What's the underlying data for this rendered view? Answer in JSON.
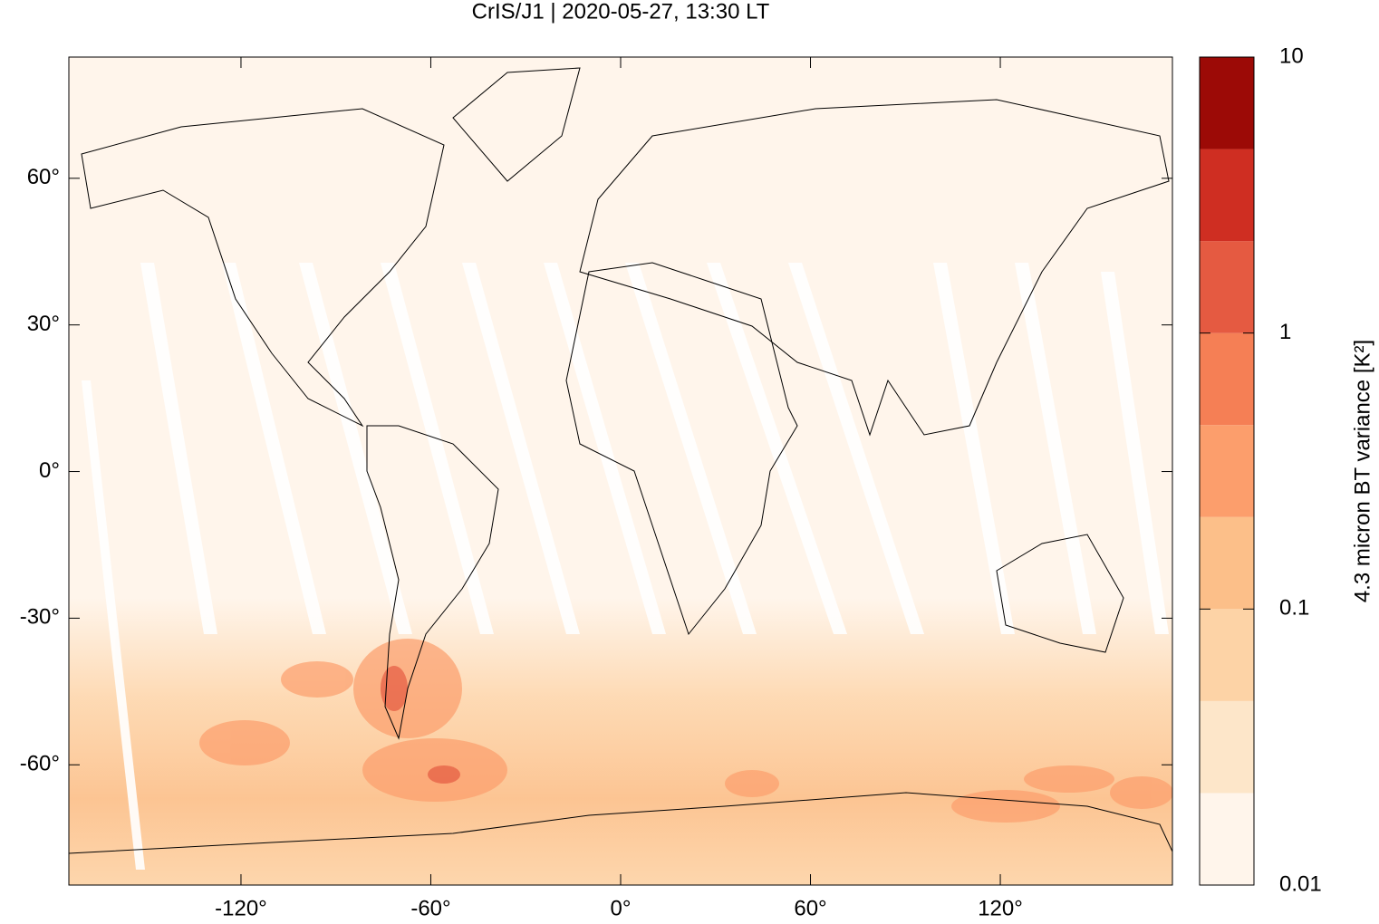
{
  "chart_data": {
    "type": "heatmap",
    "title": "CrIS/J1 | 2020-05-27, 13:30 LT",
    "xlim": [
      -174.4,
      174.4
    ],
    "ylim": [
      -84.6,
      84.8
    ],
    "xticks": [
      {
        "value": -120,
        "label": "-120°"
      },
      {
        "value": -60,
        "label": "-60°"
      },
      {
        "value": 0,
        "label": "0°"
      },
      {
        "value": 60,
        "label": "60°"
      },
      {
        "value": 120,
        "label": "120°"
      }
    ],
    "yticks": [
      {
        "value": 60,
        "label": "60°"
      },
      {
        "value": 30,
        "label": "30°"
      },
      {
        "value": 0,
        "label": "0°"
      },
      {
        "value": -30,
        "label": "-30°"
      },
      {
        "value": -60,
        "label": "-60°"
      }
    ],
    "colorbar": {
      "label": "4.3 micron BT variance [K²]",
      "lim": [
        0.01,
        10
      ],
      "log": true,
      "ticks": [
        0.01,
        0.1,
        1,
        10
      ],
      "colors": [
        "#fff5eb",
        "#fde6c9",
        "#fdd3a6",
        "#fcbf89",
        "#fc9e6c",
        "#f57f55",
        "#e55a41",
        "#cf2e22",
        "#9c0a06"
      ]
    }
  }
}
